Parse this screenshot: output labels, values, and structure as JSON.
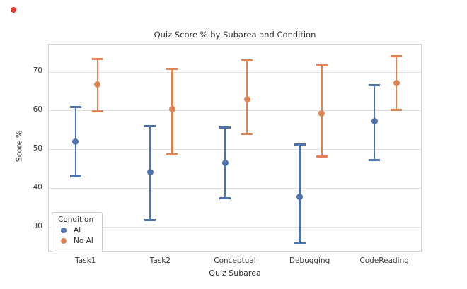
{
  "page": {
    "background": "#ffffff"
  },
  "annotation": {
    "red_dot_color": "#e23b2e"
  },
  "chart_data": {
    "type": "pointplot-with-error-bars",
    "title": "Quiz Score % by Subarea and Condition",
    "xlabel": "Quiz Subarea",
    "ylabel": "Score %",
    "categories": [
      "Task1",
      "Task2",
      "Conceptual",
      "Debugging",
      "CodeReading"
    ],
    "yticks": [
      30,
      40,
      50,
      60,
      70
    ],
    "ylim": [
      23.6,
      77.1
    ],
    "grid": "horizontal",
    "legend": {
      "title": "Condition",
      "position": "lower-left",
      "entries": [
        {
          "label": "AI",
          "color": "#4C72B0"
        },
        {
          "label": "No AI",
          "color": "#DD8452"
        }
      ]
    },
    "series": [
      {
        "name": "AI",
        "color": "#4C72B0",
        "values": [
          52.0,
          44.3,
          46.6,
          37.9,
          57.3
        ],
        "ci_low": [
          43.1,
          31.8,
          37.5,
          25.9,
          47.3
        ],
        "ci_high": [
          61.0,
          56.1,
          55.8,
          51.3,
          66.6
        ]
      },
      {
        "name": "No AI",
        "color": "#DD8452",
        "values": [
          66.8,
          60.5,
          63.0,
          59.4,
          67.2
        ],
        "ci_low": [
          59.9,
          48.8,
          54.0,
          48.2,
          60.3
        ],
        "ci_high": [
          73.3,
          70.9,
          73.0,
          72.0,
          74.1
        ]
      }
    ]
  }
}
